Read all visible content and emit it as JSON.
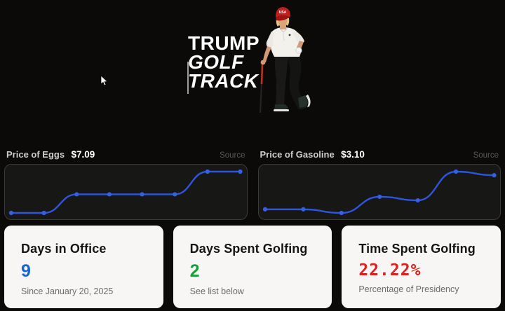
{
  "page": {
    "background": "#0b0a09"
  },
  "header": {
    "title_line1": "TRUMP",
    "title_line2": "GOLF",
    "title_line3": "TRACK",
    "cap_text": "USA"
  },
  "charts": [
    {
      "label": "Price of Eggs",
      "price": "$7.09",
      "source_label": "Source"
    },
    {
      "label": "Price of Gasoline",
      "price": "$3.10",
      "source_label": "Source"
    }
  ],
  "chart_data": [
    {
      "type": "line",
      "title": "Price of Eggs",
      "current_price": "$7.09",
      "x": [
        1,
        2,
        3,
        4,
        5,
        6,
        7,
        8
      ],
      "values": [
        6.49,
        6.49,
        6.76,
        6.76,
        6.76,
        6.76,
        7.09,
        7.09
      ],
      "ylim": [
        6.49,
        7.09
      ],
      "xlabel": "",
      "ylabel": "",
      "grid": false,
      "legend": false,
      "line_color": "#2e55dd",
      "point_color": "#3560e6"
    },
    {
      "type": "line",
      "title": "Price of Gasoline",
      "current_price": "$3.10",
      "x": [
        1,
        2,
        3,
        4,
        5,
        6,
        7
      ],
      "values": [
        2.91,
        2.91,
        2.89,
        2.98,
        2.96,
        3.12,
        3.1
      ],
      "ylim": [
        2.89,
        3.12
      ],
      "xlabel": "",
      "ylabel": "",
      "grid": false,
      "legend": false,
      "line_color": "#2e55dd",
      "point_color": "#3560e6"
    }
  ],
  "stats": [
    {
      "title": "Days in Office",
      "value": "9",
      "subtitle": "Since January 20, 2025",
      "value_color": "#1565d9"
    },
    {
      "title": "Days Spent Golfing",
      "value": "2",
      "subtitle": "See list below",
      "value_color": "#17a03a"
    },
    {
      "title": "Time Spent Golfing",
      "value": "22.22%",
      "subtitle": "Percentage of Presidency",
      "value_color": "#e01f1f"
    }
  ]
}
